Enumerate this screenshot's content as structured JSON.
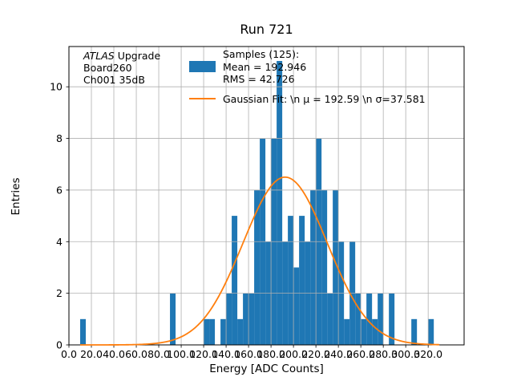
{
  "annotation": {
    "line1_italic": "ATLAS",
    "line1_rest": " Upgrade",
    "line2": "Board260",
    "line3": "Ch001 35dB"
  },
  "legend": {
    "samples_label": "Samples (125):\n Mean = 192.946\n RMS = 42.726",
    "gaussian_label": "Gaussian Fit: \\n μ = 192.59 \\n σ=37.581"
  },
  "chart_data": {
    "type": "bar",
    "subtype": "histogram-with-gaussian-fit",
    "title": "Run 721",
    "xlabel": "Energy [ADC Counts]",
    "ylabel": "Entries",
    "xlim": [
      0,
      352
    ],
    "ylim": [
      0,
      11.56
    ],
    "grid": true,
    "bin_width": 5,
    "bins": [
      [
        10,
        1
      ],
      [
        90,
        2
      ],
      [
        120,
        1
      ],
      [
        125,
        1
      ],
      [
        135,
        1
      ],
      [
        140,
        2
      ],
      [
        145,
        5
      ],
      [
        150,
        1
      ],
      [
        155,
        2
      ],
      [
        160,
        2
      ],
      [
        165,
        6
      ],
      [
        170,
        8
      ],
      [
        175,
        4
      ],
      [
        180,
        8
      ],
      [
        185,
        11
      ],
      [
        190,
        4
      ],
      [
        195,
        5
      ],
      [
        200,
        3
      ],
      [
        205,
        5
      ],
      [
        210,
        4
      ],
      [
        215,
        6
      ],
      [
        220,
        8
      ],
      [
        225,
        6
      ],
      [
        230,
        2
      ],
      [
        235,
        6
      ],
      [
        240,
        4
      ],
      [
        245,
        1
      ],
      [
        250,
        4
      ],
      [
        255,
        2
      ],
      [
        260,
        1
      ],
      [
        265,
        2
      ],
      [
        270,
        1
      ],
      [
        275,
        2
      ],
      [
        285,
        2
      ],
      [
        305,
        1
      ],
      [
        320,
        1
      ]
    ],
    "n_samples": 125,
    "mean": 192.946,
    "rms": 42.726,
    "gaussian": {
      "mu": 192.59,
      "sigma": 37.581,
      "amplitude": 6.5,
      "range": [
        10,
        330
      ]
    },
    "x_tick_values": [
      0,
      20,
      40,
      60,
      80,
      100,
      120,
      140,
      160,
      180,
      200,
      220,
      240,
      260,
      280,
      300,
      320
    ],
    "x_tick_labels": [
      "0.0",
      "20.0",
      "40.0",
      "60.0",
      "80.0",
      "100.0",
      "120.0",
      "140.0",
      "160.0",
      "180.0",
      "200.0",
      "220.0",
      "240.0",
      "260.0",
      "280.0",
      "300.0",
      "320.0"
    ],
    "y_tick_values": [
      0,
      2,
      4,
      6,
      8,
      10
    ],
    "y_tick_labels": [
      "0",
      "2",
      "4",
      "6",
      "8",
      "10"
    ],
    "colors": {
      "bar": "#1f77b4",
      "fit": "#ff7f0e",
      "grid": "#b0b0b0",
      "spine": "#000000"
    }
  }
}
